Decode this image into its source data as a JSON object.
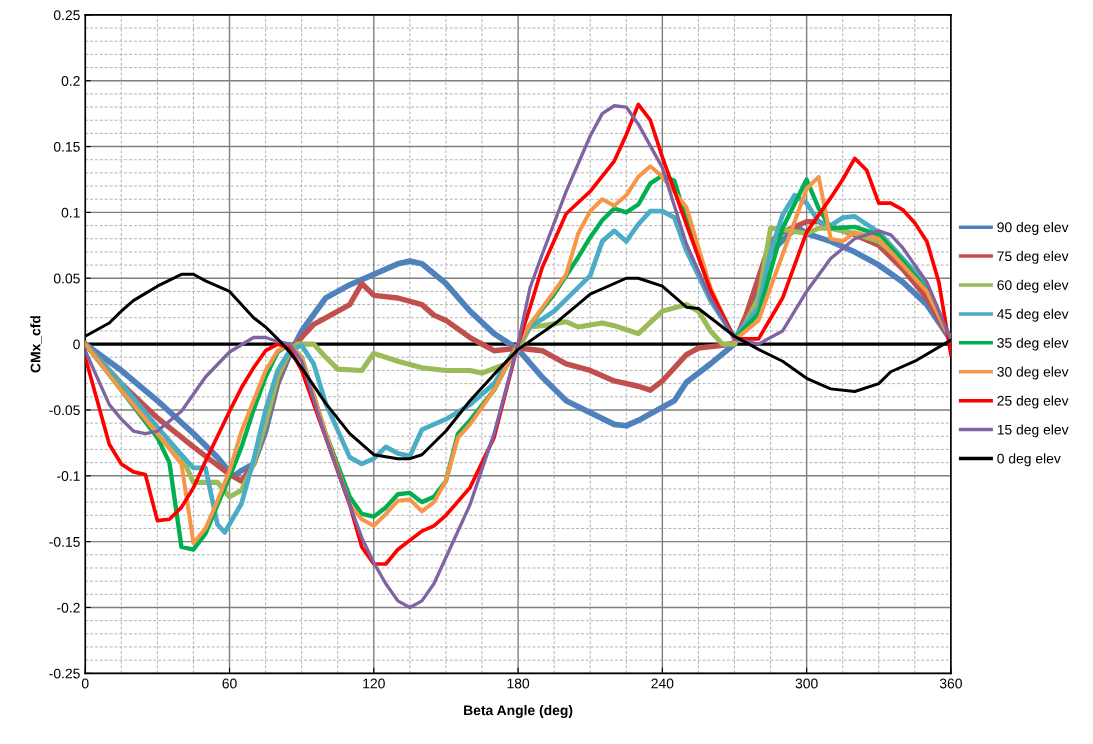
{
  "chart_data": {
    "type": "line",
    "xlabel": "Beta Angle (deg)",
    "ylabel": "CMx_cfd",
    "xlim": [
      0,
      360
    ],
    "xticks": [
      0,
      60,
      120,
      180,
      240,
      300,
      360
    ],
    "ylim": [
      -0.25,
      0.25
    ],
    "yticks": [
      -0.25,
      -0.2,
      -0.15,
      -0.1,
      -0.05,
      0,
      0.05,
      0.1,
      0.15,
      0.2,
      0.25
    ],
    "grid": true,
    "legend": "right",
    "marker": "none",
    "line_style": "solid",
    "ref_lines": [
      {
        "axis": "y",
        "value": 0,
        "color": "#000000"
      }
    ],
    "series": [
      {
        "name": "90 deg elev",
        "color": "#4f81bd",
        "x": [
          0,
          15,
          30,
          45,
          55,
          60,
          62,
          65,
          70,
          75,
          80,
          85,
          90,
          100,
          110,
          120,
          130,
          135,
          140,
          150,
          160,
          170,
          180,
          190,
          200,
          210,
          220,
          225,
          230,
          240,
          245,
          250,
          260,
          270,
          280,
          285,
          296,
          300,
          310,
          320,
          330,
          340,
          350,
          360
        ],
        "values": [
          0,
          -0.02,
          -0.043,
          -0.068,
          -0.086,
          -0.097,
          -0.1,
          -0.096,
          -0.091,
          -0.066,
          -0.03,
          -0.008,
          0.01,
          0.035,
          0.045,
          0.053,
          0.061,
          0.063,
          0.061,
          0.046,
          0.025,
          0.008,
          -0.004,
          -0.025,
          -0.043,
          -0.052,
          -0.061,
          -0.062,
          -0.058,
          -0.048,
          -0.043,
          -0.029,
          -0.015,
          0,
          0.04,
          0.07,
          0.089,
          0.084,
          0.078,
          0.07,
          0.06,
          0.047,
          0.03,
          0.003
        ]
      },
      {
        "name": "75 deg elev",
        "color": "#c0504d",
        "x": [
          0,
          15,
          30,
          45,
          60,
          65,
          70,
          75,
          80,
          85,
          90,
          95,
          100,
          110,
          115,
          120,
          130,
          140,
          145,
          150,
          160,
          170,
          180,
          190,
          200,
          210,
          220,
          230,
          235,
          240,
          250,
          255,
          265,
          270,
          275,
          285,
          290,
          300,
          305,
          310,
          320,
          330,
          340,
          350,
          360
        ],
        "values": [
          0,
          -0.03,
          -0.056,
          -0.078,
          -0.099,
          -0.104,
          -0.091,
          -0.061,
          -0.028,
          -0.006,
          0.005,
          0.015,
          0.02,
          0.03,
          0.046,
          0.037,
          0.035,
          0.03,
          0.022,
          0.018,
          0.005,
          -0.005,
          -0.003,
          -0.005,
          -0.015,
          -0.02,
          -0.028,
          -0.032,
          -0.035,
          -0.028,
          -0.008,
          -0.003,
          -0.001,
          0.001,
          0.023,
          0.078,
          0.085,
          0.093,
          0.093,
          0.089,
          0.083,
          0.075,
          0.057,
          0.035,
          0.003
        ]
      },
      {
        "name": "60 deg elev",
        "color": "#9bbb59",
        "x": [
          0,
          15,
          30,
          40,
          45,
          55,
          60,
          65,
          70,
          75,
          80,
          85,
          88,
          95,
          100,
          105,
          115,
          120,
          130,
          140,
          150,
          160,
          165,
          175,
          180,
          185,
          190,
          200,
          205,
          215,
          220,
          230,
          240,
          250,
          255,
          260,
          265,
          270,
          280,
          285,
          290,
          300,
          305,
          310,
          320,
          330,
          340,
          350,
          360
        ],
        "values": [
          0,
          -0.03,
          -0.07,
          -0.085,
          -0.105,
          -0.105,
          -0.116,
          -0.111,
          -0.091,
          -0.06,
          -0.025,
          -0.006,
          0,
          0,
          -0.01,
          -0.019,
          -0.02,
          -0.007,
          -0.013,
          -0.018,
          -0.02,
          -0.02,
          -0.022,
          -0.015,
          -0.004,
          0.013,
          0.014,
          0.017,
          0.013,
          0.016,
          0.014,
          0.008,
          0.025,
          0.03,
          0.025,
          0.01,
          0,
          0,
          0.035,
          0.088,
          0.087,
          0.084,
          0.088,
          0.088,
          0.084,
          0.078,
          0.063,
          0.042,
          0.003
        ]
      },
      {
        "name": "45 deg elev",
        "color": "#4bacc6",
        "x": [
          0,
          15,
          30,
          40,
          45,
          50,
          55,
          58,
          65,
          70,
          75,
          80,
          85,
          90,
          95,
          100,
          110,
          115,
          120,
          125,
          130,
          135,
          140,
          150,
          160,
          170,
          180,
          185,
          195,
          210,
          215,
          220,
          225,
          230,
          235,
          240,
          245,
          250,
          260,
          270,
          280,
          285,
          290,
          295,
          300,
          305,
          310,
          315,
          320,
          330,
          340,
          350,
          360
        ],
        "values": [
          0,
          -0.03,
          -0.063,
          -0.084,
          -0.094,
          -0.094,
          -0.137,
          -0.143,
          -0.121,
          -0.088,
          -0.05,
          -0.02,
          -0.005,
          -0.001,
          -0.015,
          -0.045,
          -0.086,
          -0.091,
          -0.087,
          -0.078,
          -0.083,
          -0.085,
          -0.065,
          -0.057,
          -0.046,
          -0.03,
          0,
          0.013,
          0.025,
          0.052,
          0.078,
          0.086,
          0.078,
          0.091,
          0.101,
          0.101,
          0.096,
          0.071,
          0.033,
          0.005,
          0.028,
          0.07,
          0.098,
          0.113,
          0.107,
          0.093,
          0.09,
          0.096,
          0.097,
          0.085,
          0.065,
          0.045,
          0.003
        ]
      },
      {
        "name": "35 deg elev",
        "color": "#00b050",
        "x": [
          0,
          15,
          30,
          35,
          40,
          45,
          50,
          55,
          60,
          65,
          70,
          75,
          80,
          85,
          90,
          100,
          110,
          115,
          120,
          125,
          130,
          135,
          140,
          145,
          150,
          155,
          160,
          170,
          180,
          185,
          195,
          205,
          210,
          215,
          220,
          225,
          230,
          235,
          240,
          245,
          250,
          260,
          270,
          280,
          290,
          300,
          305,
          310,
          320,
          330,
          340,
          350,
          360
        ],
        "values": [
          0,
          -0.035,
          -0.071,
          -0.09,
          -0.154,
          -0.156,
          -0.144,
          -0.122,
          -0.101,
          -0.078,
          -0.05,
          -0.025,
          -0.006,
          0,
          -0.01,
          -0.068,
          -0.116,
          -0.129,
          -0.131,
          -0.124,
          -0.114,
          -0.113,
          -0.12,
          -0.116,
          -0.104,
          -0.068,
          -0.058,
          -0.035,
          0,
          0.015,
          0.038,
          0.066,
          0.081,
          0.094,
          0.103,
          0.1,
          0.106,
          0.122,
          0.128,
          0.124,
          0.094,
          0.041,
          0.004,
          0.023,
          0.088,
          0.125,
          0.103,
          0.088,
          0.089,
          0.083,
          0.063,
          0.041,
          0.003
        ]
      },
      {
        "name": "30 deg elev",
        "color": "#f79646",
        "x": [
          0,
          15,
          30,
          40,
          45,
          50,
          55,
          60,
          65,
          70,
          75,
          80,
          85,
          90,
          100,
          110,
          115,
          120,
          125,
          130,
          135,
          140,
          145,
          150,
          155,
          160,
          170,
          180,
          185,
          195,
          200,
          205,
          210,
          215,
          220,
          225,
          230,
          235,
          240,
          250,
          260,
          270,
          280,
          290,
          300,
          305,
          310,
          315,
          320,
          330,
          340,
          350,
          360
        ],
        "values": [
          0,
          -0.035,
          -0.068,
          -0.091,
          -0.151,
          -0.14,
          -0.119,
          -0.096,
          -0.066,
          -0.043,
          -0.02,
          -0.005,
          0,
          -0.01,
          -0.068,
          -0.122,
          -0.133,
          -0.138,
          -0.129,
          -0.119,
          -0.118,
          -0.127,
          -0.12,
          -0.104,
          -0.071,
          -0.061,
          -0.035,
          0,
          0.015,
          0.04,
          0.053,
          0.084,
          0.101,
          0.11,
          0.105,
          0.113,
          0.127,
          0.135,
          0.127,
          0.104,
          0.043,
          0.003,
          0.018,
          0.068,
          0.118,
          0.127,
          0.08,
          0.078,
          0.085,
          0.08,
          0.06,
          0.04,
          0.003
        ]
      },
      {
        "name": "25 deg elev",
        "color": "#ff0000",
        "x": [
          0,
          10,
          15,
          20,
          25,
          30,
          35,
          40,
          45,
          50,
          60,
          65,
          70,
          75,
          80,
          85,
          90,
          100,
          110,
          115,
          120,
          125,
          130,
          140,
          145,
          150,
          160,
          170,
          180,
          185,
          190,
          200,
          210,
          220,
          225,
          230,
          235,
          240,
          250,
          260,
          270,
          280,
          290,
          300,
          310,
          315,
          320,
          325,
          330,
          335,
          340,
          345,
          350,
          355,
          360
        ],
        "values": [
          -0.01,
          -0.076,
          -0.091,
          -0.097,
          -0.099,
          -0.134,
          -0.133,
          -0.124,
          -0.109,
          -0.089,
          -0.051,
          -0.033,
          -0.018,
          -0.005,
          0,
          -0.003,
          -0.02,
          -0.071,
          -0.122,
          -0.154,
          -0.167,
          -0.167,
          -0.156,
          -0.142,
          -0.138,
          -0.13,
          -0.109,
          -0.071,
          0,
          0.028,
          0.058,
          0.099,
          0.116,
          0.139,
          0.159,
          0.182,
          0.17,
          0.142,
          0.091,
          0.041,
          0.004,
          0.004,
          0.035,
          0.085,
          0.111,
          0.125,
          0.141,
          0.132,
          0.107,
          0.107,
          0.102,
          0.092,
          0.078,
          0.047,
          -0.008
        ]
      },
      {
        "name": "15 deg elev",
        "color": "#8064a2",
        "x": [
          0,
          10,
          15,
          20,
          25,
          30,
          40,
          50,
          60,
          70,
          75,
          80,
          85,
          90,
          100,
          110,
          115,
          120,
          125,
          130,
          135,
          140,
          145,
          150,
          160,
          170,
          180,
          185,
          190,
          200,
          210,
          215,
          220,
          225,
          230,
          240,
          250,
          260,
          270,
          280,
          290,
          300,
          310,
          320,
          330,
          335,
          340,
          350,
          360
        ],
        "values": [
          -0.005,
          -0.046,
          -0.057,
          -0.066,
          -0.068,
          -0.066,
          -0.051,
          -0.025,
          -0.006,
          0.005,
          0.005,
          0.002,
          0,
          -0.013,
          -0.071,
          -0.122,
          -0.147,
          -0.166,
          -0.182,
          -0.195,
          -0.2,
          -0.195,
          -0.182,
          -0.162,
          -0.122,
          -0.068,
          0,
          0.043,
          0.068,
          0.116,
          0.158,
          0.175,
          0.181,
          0.18,
          0.167,
          0.134,
          0.076,
          0.035,
          0.004,
          0,
          0.01,
          0.04,
          0.065,
          0.08,
          0.086,
          0.083,
          0.073,
          0.047,
          0.003
        ]
      },
      {
        "name": "0 deg elev",
        "color": "#000000",
        "x": [
          0,
          10,
          15,
          20,
          30,
          40,
          45,
          50,
          60,
          70,
          75,
          80,
          85,
          90,
          100,
          110,
          120,
          130,
          135,
          140,
          150,
          160,
          170,
          180,
          195,
          210,
          225,
          230,
          240,
          250,
          255,
          260,
          270,
          280,
          290,
          300,
          310,
          320,
          330,
          335,
          345,
          360
        ],
        "values": [
          0.006,
          0.016,
          0.025,
          0.033,
          0.044,
          0.053,
          0.053,
          0.048,
          0.04,
          0.02,
          0.013,
          0.004,
          -0.006,
          -0.018,
          -0.045,
          -0.068,
          -0.084,
          -0.087,
          -0.087,
          -0.084,
          -0.066,
          -0.043,
          -0.023,
          -0.004,
          0.015,
          0.038,
          0.05,
          0.05,
          0.044,
          0.028,
          0.027,
          0.02,
          0.006,
          -0.004,
          -0.013,
          -0.026,
          -0.034,
          -0.036,
          -0.03,
          -0.021,
          -0.013,
          0.003
        ]
      }
    ]
  }
}
